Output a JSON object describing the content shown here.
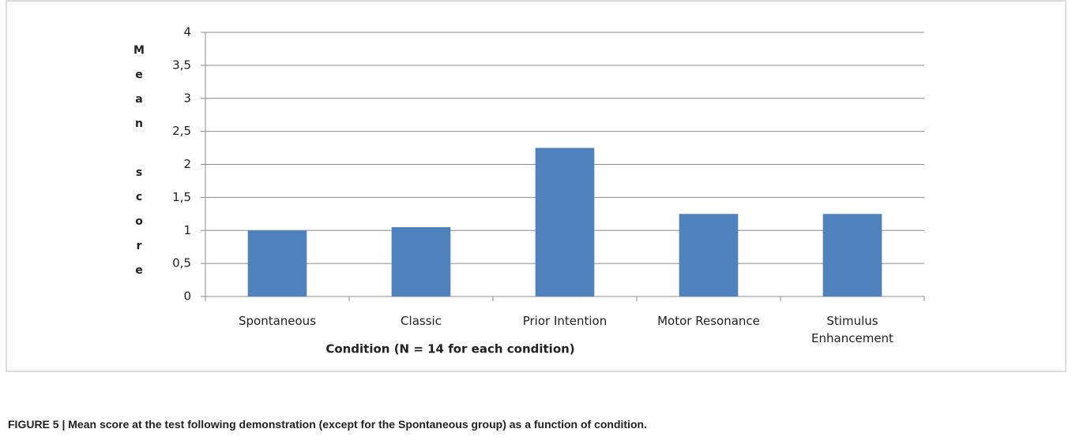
{
  "chart_data": {
    "type": "bar",
    "caption": "FIGURE 5 | Mean score at the test following demonstration (except for the Spontaneous group) as a function of condition.",
    "x_label": "Condition (N = 14 for each condition)",
    "y_label": "Mean score",
    "categories": [
      "Spontaneous",
      "Classic",
      "Prior Intention",
      "Motor Resonance",
      "Stimulus Enhancement"
    ],
    "values": [
      1,
      1.05,
      2.25,
      1.25,
      1.25
    ],
    "color": "#4f81bd",
    "ylim": [
      0,
      4
    ],
    "yticks": [
      0,
      {
        "value": 0.5,
        "label": "0,5"
      },
      1,
      {
        "value": 1.5,
        "label": "1,5"
      },
      2,
      {
        "value": 2.5,
        "label": "2,5"
      },
      3,
      {
        "value": 3.5,
        "label": "3,5"
      },
      4
    ],
    "grid": true
  }
}
